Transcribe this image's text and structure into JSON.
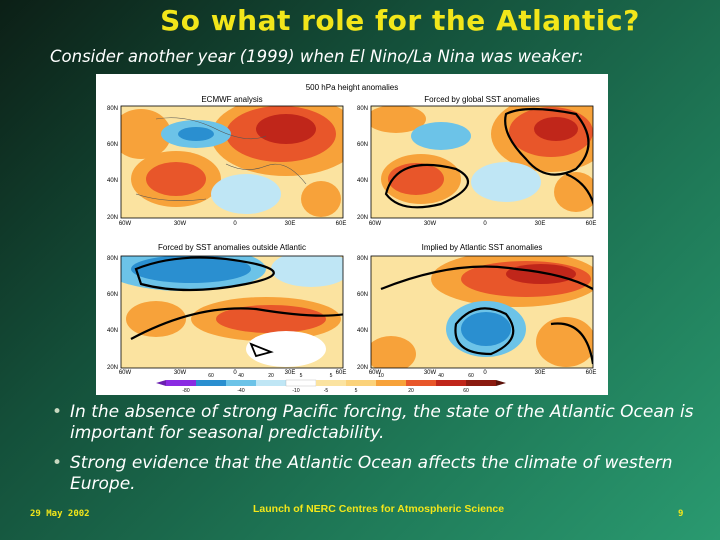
{
  "slide": {
    "title": "So what role for the Atlantic?",
    "subtitle": "Consider another year (1999) when El Nino/La Nina was weaker:"
  },
  "figure": {
    "main_title": "500 hPa height anomalies",
    "panels": [
      {
        "title": "ECMWF analysis"
      },
      {
        "title": "Forced by global SST anomalies"
      },
      {
        "title": "Forced by SST anomalies outside Atlantic"
      },
      {
        "title": "Implied by Atlantic SST anomalies"
      }
    ],
    "lat_labels": [
      "80N",
      "60N",
      "40N",
      "20N"
    ],
    "lon_labels": [
      "60W",
      "30W",
      "0",
      "30E",
      "60E"
    ],
    "colorbar_upper": [
      "60",
      "40",
      "20",
      "5",
      "5",
      "10",
      "40",
      "60"
    ],
    "colorbar_lower": [
      "-80",
      "-40",
      "-10",
      "-5",
      "5",
      "20",
      "60"
    ],
    "colors": {
      "positive_strong": "#c0261a",
      "positive_mid": "#e8562a",
      "positive_weak": "#f7a23a",
      "positive_light": "#fbd27a",
      "negative_light": "#bfe6f5",
      "negative_mid": "#6cc3e8",
      "negative_strong": "#2a8fd0"
    }
  },
  "bullets": [
    "In the absence of strong Pacific forcing, the state of the Atlantic Ocean is important for seasonal predictability.",
    "Strong evidence that the Atlantic Ocean affects the climate of western Europe."
  ],
  "footer": {
    "date": "29 May 2002",
    "center": "Launch of NERC Centres for Atmospheric Science",
    "page": "9"
  }
}
